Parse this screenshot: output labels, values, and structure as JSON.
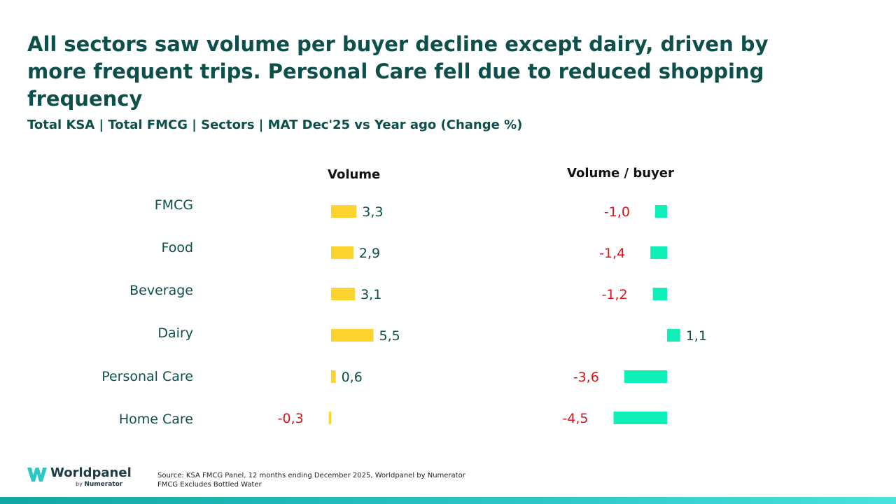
{
  "header": {
    "title": "All sectors saw volume per buyer decline except dairy, driven by more frequent trips. Personal Care fell due to reduced shopping frequency",
    "subtitle": "Total KSA | Total FMCG | Sectors | MAT Dec'25 vs Year ago (Change %)"
  },
  "chart_data": {
    "type": "bar",
    "orientation": "horizontal",
    "categories": [
      "FMCG",
      "Food",
      "Beverage",
      "Dairy",
      "Personal Care",
      "Home Care"
    ],
    "series": [
      {
        "name": "Volume",
        "values": [
          3.3,
          2.9,
          3.1,
          5.5,
          0.6,
          -0.3
        ],
        "labels": [
          "3,3",
          "2,9",
          "3,1",
          "5,5",
          "0,6",
          "-0,3"
        ],
        "color": "#FDD32F"
      },
      {
        "name": "Volume / buyer",
        "values": [
          -1.0,
          -1.4,
          -1.2,
          1.1,
          -3.6,
          -4.5
        ],
        "labels": [
          "-1,0",
          "-1,4",
          "-1,2",
          "1,1",
          "-3,6",
          "-4,5"
        ],
        "color": "#0FEFB8"
      }
    ],
    "positive_label_color": "#0d4f4a",
    "negative_label_color": "#d9141c"
  },
  "footer": {
    "logo_word": "Worldpanel",
    "logo_by": "by",
    "logo_brand": "Numerator",
    "source_line1": "Source: KSA FMCG Panel, 12 months ending December 2025, Worldpanel by Numerator",
    "source_line2": "FMCG Excludes Bottled Water"
  }
}
